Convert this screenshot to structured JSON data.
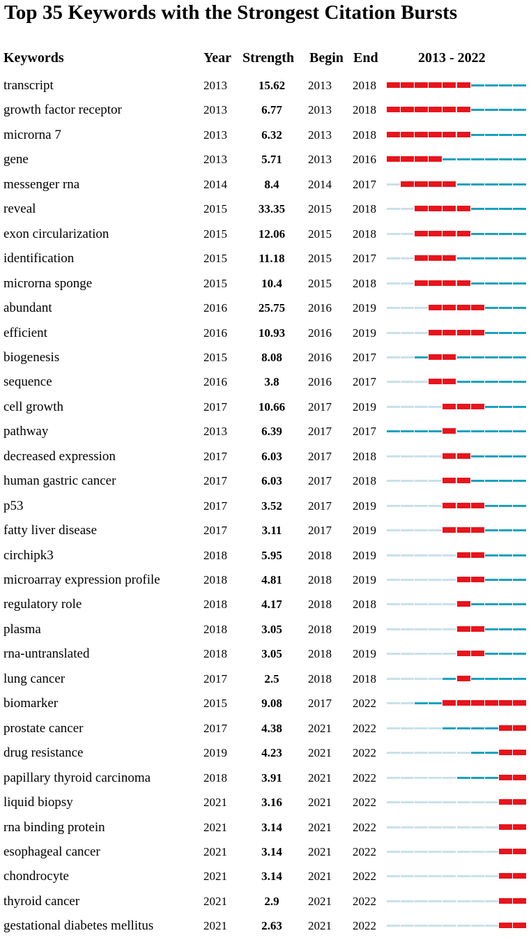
{
  "chart_data": {
    "type": "table",
    "title": "Top 35 Keywords with the Strongest Citation Bursts",
    "columns": [
      "Keywords",
      "Year",
      "Strength",
      "Begin",
      "End",
      "2013 - 2022"
    ],
    "range_start": 2013,
    "range_end": 2022,
    "colors": {
      "pre": "#c8e0ec",
      "burst": "#e8141c",
      "post": "#17a2c0"
    },
    "rows": [
      {
        "keyword": "transcript",
        "year": "2013",
        "strength": "15.62",
        "begin": "2013",
        "end": "2018"
      },
      {
        "keyword": "growth factor receptor",
        "year": "2013",
        "strength": "6.77",
        "begin": "2013",
        "end": "2018"
      },
      {
        "keyword": "microrna 7",
        "year": "2013",
        "strength": "6.32",
        "begin": "2013",
        "end": "2018"
      },
      {
        "keyword": "gene",
        "year": "2013",
        "strength": "5.71",
        "begin": "2013",
        "end": "2016"
      },
      {
        "keyword": "messenger rna",
        "year": "2014",
        "strength": "8.4",
        "begin": "2014",
        "end": "2017"
      },
      {
        "keyword": "reveal",
        "year": "2015",
        "strength": "33.35",
        "begin": "2015",
        "end": "2018"
      },
      {
        "keyword": "exon circularization",
        "year": "2015",
        "strength": "12.06",
        "begin": "2015",
        "end": "2018"
      },
      {
        "keyword": "identification",
        "year": "2015",
        "strength": "11.18",
        "begin": "2015",
        "end": "2017"
      },
      {
        "keyword": "microrna sponge",
        "year": "2015",
        "strength": "10.4",
        "begin": "2015",
        "end": "2018"
      },
      {
        "keyword": "abundant",
        "year": "2016",
        "strength": "25.75",
        "begin": "2016",
        "end": "2019"
      },
      {
        "keyword": "efficient",
        "year": "2016",
        "strength": "10.93",
        "begin": "2016",
        "end": "2019"
      },
      {
        "keyword": "biogenesis",
        "year": "2015",
        "strength": "8.08",
        "begin": "2016",
        "end": "2017"
      },
      {
        "keyword": "sequence",
        "year": "2016",
        "strength": "3.8",
        "begin": "2016",
        "end": "2017"
      },
      {
        "keyword": "cell growth",
        "year": "2017",
        "strength": "10.66",
        "begin": "2017",
        "end": "2019"
      },
      {
        "keyword": "pathway",
        "year": "2013",
        "strength": "6.39",
        "begin": "2017",
        "end": "2017"
      },
      {
        "keyword": "decreased expression",
        "year": "2017",
        "strength": "6.03",
        "begin": "2017",
        "end": "2018"
      },
      {
        "keyword": "human gastric cancer",
        "year": "2017",
        "strength": "6.03",
        "begin": "2017",
        "end": "2018"
      },
      {
        "keyword": "p53",
        "year": "2017",
        "strength": "3.52",
        "begin": "2017",
        "end": "2019"
      },
      {
        "keyword": "fatty liver disease",
        "year": "2017",
        "strength": "3.11",
        "begin": "2017",
        "end": "2019"
      },
      {
        "keyword": "circhipk3",
        "year": "2018",
        "strength": "5.95",
        "begin": "2018",
        "end": "2019"
      },
      {
        "keyword": "microarray expression profile",
        "year": "2018",
        "strength": "4.81",
        "begin": "2018",
        "end": "2019"
      },
      {
        "keyword": "regulatory role",
        "year": "2018",
        "strength": "4.17",
        "begin": "2018",
        "end": "2018"
      },
      {
        "keyword": "plasma",
        "year": "2018",
        "strength": "3.05",
        "begin": "2018",
        "end": "2019"
      },
      {
        "keyword": "rna-untranslated",
        "year": "2018",
        "strength": "3.05",
        "begin": "2018",
        "end": "2019"
      },
      {
        "keyword": "lung cancer",
        "year": "2017",
        "strength": "2.5",
        "begin": "2018",
        "end": "2018"
      },
      {
        "keyword": "biomarker",
        "year": "2015",
        "strength": "9.08",
        "begin": "2017",
        "end": "2022"
      },
      {
        "keyword": "prostate cancer",
        "year": "2017",
        "strength": "4.38",
        "begin": "2021",
        "end": "2022"
      },
      {
        "keyword": "drug resistance",
        "year": "2019",
        "strength": "4.23",
        "begin": "2021",
        "end": "2022"
      },
      {
        "keyword": "papillary thyroid carcinoma",
        "year": "2018",
        "strength": "3.91",
        "begin": "2021",
        "end": "2022"
      },
      {
        "keyword": "liquid biopsy",
        "year": "2021",
        "strength": "3.16",
        "begin": "2021",
        "end": "2022"
      },
      {
        "keyword": "rna binding protein",
        "year": "2021",
        "strength": "3.14",
        "begin": "2021",
        "end": "2022"
      },
      {
        "keyword": "esophageal cancer",
        "year": "2021",
        "strength": "3.14",
        "begin": "2021",
        "end": "2022"
      },
      {
        "keyword": "chondrocyte",
        "year": "2021",
        "strength": "3.14",
        "begin": "2021",
        "end": "2022"
      },
      {
        "keyword": "thyroid cancer",
        "year": "2021",
        "strength": "2.9",
        "begin": "2021",
        "end": "2022"
      },
      {
        "keyword": "gestational diabetes mellitus",
        "year": "2021",
        "strength": "2.63",
        "begin": "2021",
        "end": "2022"
      }
    ]
  }
}
